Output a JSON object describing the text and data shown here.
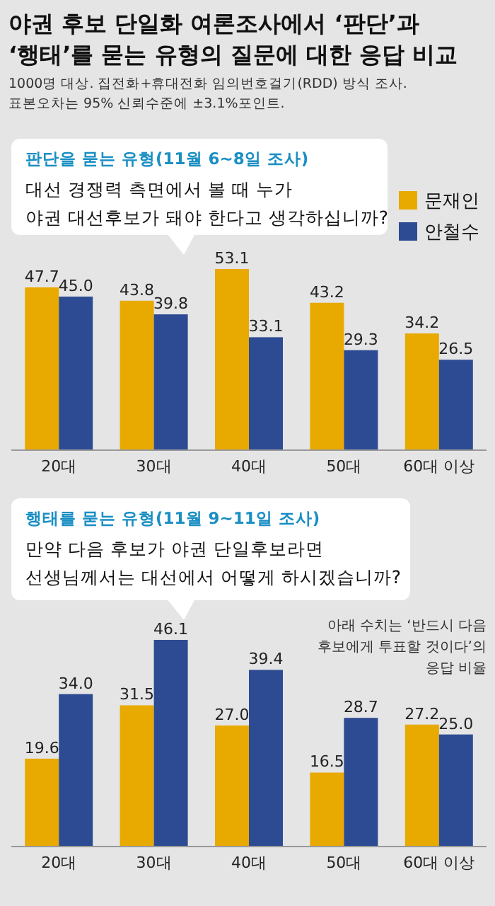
{
  "chart_data": [
    {
      "type": "bar",
      "title": "야권 후보 단일화 여론조사에서 ‘판단’과 ‘행태’를 묻는 유형의 질문에 대한 응답 비교",
      "subtitle": "판단을 묻는 유형(11월 6~8일 조사)",
      "annotations": [
        "1000명 대상. 집전화+휴대전화 임의번호걸기(RDD) 방식 조사.",
        "표본오차는 95% 신뢰수준에 ±3.1%포인트.",
        "대선 경쟁력 측면에서 볼 때 누가\n야권 대선후보가 돼야 한다고 생각하십니까?"
      ],
      "categories": [
        "20대",
        "30대",
        "40대",
        "50대",
        "60대 이상"
      ],
      "series": [
        {
          "name": "문재인",
          "color": "#e8a900",
          "values": [
            47.7,
            43.8,
            53.1,
            43.2,
            34.2
          ],
          "value_labels": [
            "47.7",
            "43.8",
            "53.1",
            "43.2",
            "34.2"
          ]
        },
        {
          "name": "안철수",
          "color": "#2d4b93",
          "values": [
            45.0,
            39.8,
            33.1,
            29.3,
            26.5
          ],
          "value_labels": [
            "45.0",
            "39.8",
            "33.1",
            "29.3",
            "26.5"
          ]
        }
      ],
      "legend": "right"
    },
    {
      "type": "bar",
      "subtitle": "행태를 묻는 유형(11월 9~11일 조사)",
      "annotations": [
        "만약 다음 후보가 야권 단일후보라면\n선생님께서는 대선에서 어떻게 하시겠습니까?",
        "아래 수치는 ‘반드시 다음\n후보에게 투표할 것이다’의\n응답 비율"
      ],
      "categories": [
        "20대",
        "30대",
        "40대",
        "50대",
        "60대 이상"
      ],
      "series": [
        {
          "color": "#e8a900",
          "values": [
            19.6,
            31.5,
            27.0,
            16.5,
            27.2
          ],
          "value_labels": [
            "19.6",
            "31.5",
            "27.0",
            "16.5",
            "27.2"
          ]
        },
        {
          "color": "#2d4b93",
          "values": [
            34.0,
            46.1,
            39.4,
            28.7,
            25.0
          ],
          "value_labels": [
            "34.0",
            "46.1",
            "39.4",
            "28.7",
            "25.0"
          ]
        }
      ]
    }
  ]
}
